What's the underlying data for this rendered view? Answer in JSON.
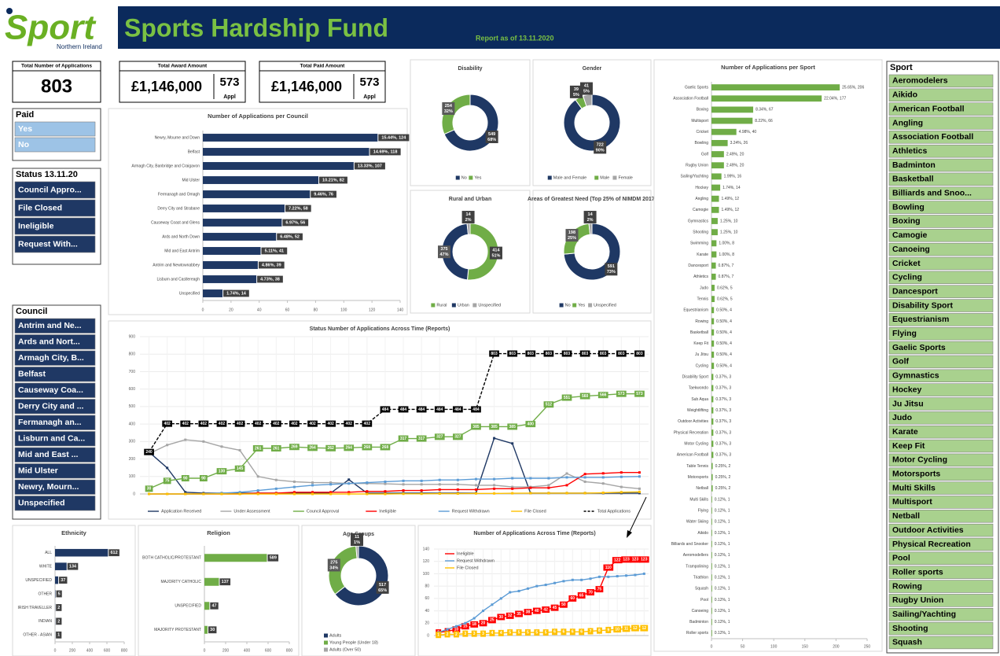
{
  "header": {
    "logo": "Sport",
    "logo_sub": "Northern Ireland",
    "title": "Sports Hardship Fund",
    "report_date": "Report as of 13.11.2020"
  },
  "kpis": [
    {
      "label": "Total Number of Applications",
      "value": 803
    },
    {
      "label": "Total Award Amount",
      "value": "£1,146,000",
      "count": 573,
      "count_label": "Appl"
    },
    {
      "label": "Total Paid Amount",
      "value": "£1,146,000",
      "count": 573,
      "count_label": "Appl"
    }
  ],
  "slicers": [
    {
      "title": "Paid",
      "items": [
        "Yes",
        "No"
      ]
    },
    {
      "title": "Status 13.11.20",
      "items": [
        "Council Appro...",
        "File Closed",
        "Ineligible",
        "Request With..."
      ]
    },
    {
      "title": "Council",
      "items": [
        "Antrim and Ne...",
        "Ards and Nort...",
        "Armagh City, B...",
        "Belfast",
        "Causeway Coa...",
        "Derry City and ...",
        "Fermanagh an...",
        "Lisburn and Ca...",
        "Mid and East ...",
        "Mid Ulster",
        "Newry, Mourn...",
        "Unspecified"
      ]
    },
    {
      "title": "Sport",
      "items": [
        "Aeromodelers",
        "Aikido",
        "American Football",
        "Angling",
        "Association Football",
        "Athletics",
        "Badminton",
        "Basketball",
        "Billiards and Snoo...",
        "Bowling",
        "Boxing",
        "Camogie",
        "Canoeing",
        "Cricket",
        "Cycling",
        "Dancesport",
        "Disability Sport",
        "Equestrianism",
        "Flying",
        "Gaelic Sports",
        "Golf",
        "Gymnastics",
        "Hockey",
        "Ju Jitsu",
        "Judo",
        "Karate",
        "Keep Fit",
        "Motor Cycling",
        "Motorsports",
        "Multi Skills",
        "Multisport",
        "Netball",
        "Outdoor Activities",
        "Physical Recreation",
        "Pool",
        "Roller sports",
        "Rowing",
        "Rugby Union",
        "Sailing/Yachting",
        "Shooting",
        "Squash"
      ]
    }
  ],
  "chart_data": [
    {
      "type": "hbar",
      "title": "Number of Applications per Council",
      "color": "#1f3864",
      "categories": [
        "Newry, Mourne and Down",
        "Belfast",
        "Armagh City, Banbridge and Craigavon",
        "Mid Ulster",
        "Fermanagh and Omagh",
        "Derry City and Strabane",
        "Causeway Coast and Glens",
        "Ards and North Down",
        "Mid and East Antrim",
        "Antrim and Newtownabbey",
        "Lisburn and Castlereagh",
        "Unspecified"
      ],
      "values": [
        124,
        118,
        107,
        82,
        76,
        58,
        56,
        52,
        41,
        39,
        38,
        14
      ],
      "value_labels": [
        "15.44%, 124",
        "14.69%, 118",
        "13.33%, 107",
        "10.21%, 82",
        "9.46%, 76",
        "7.22%, 58",
        "6.97%, 56",
        "6.48%, 52",
        "5.11%, 41",
        "4.86%, 39",
        "4.73%, 38",
        "1.74%, 14"
      ],
      "xlim": [
        0,
        140
      ],
      "xticks": [
        0,
        20,
        40,
        60,
        80,
        100,
        120,
        140
      ]
    },
    {
      "type": "donut",
      "title": "Disability",
      "categories": [
        "No",
        "Yes"
      ],
      "values": [
        549,
        254
      ],
      "value_labels": [
        [
          "549",
          "68%"
        ],
        [
          "254",
          "32%"
        ]
      ],
      "colors": [
        "#1f3864",
        "#70ad47"
      ]
    },
    {
      "type": "donut",
      "title": "Gender",
      "categories": [
        "Male and Female",
        "Male",
        "Female"
      ],
      "values": [
        722,
        39,
        41
      ],
      "value_labels": [
        [
          "722",
          "90%"
        ],
        [
          "39",
          "5%"
        ],
        [
          "41",
          "5%"
        ]
      ],
      "colors": [
        "#1f3864",
        "#70ad47",
        "#a5a5a5"
      ]
    },
    {
      "type": "donut",
      "title": "Rural and Urban",
      "categories": [
        "Rural",
        "Urban",
        "Unspecified"
      ],
      "values": [
        414,
        375,
        14
      ],
      "value_labels": [
        [
          "414",
          "51%"
        ],
        [
          "375",
          "47%"
        ],
        [
          "14",
          "2%"
        ]
      ],
      "colors": [
        "#70ad47",
        "#1f3864",
        "#a5a5a5"
      ]
    },
    {
      "type": "donut",
      "title": "Areas of Greatest Need (Top 25% of NIMDM 2017)",
      "categories": [
        "No",
        "Yes",
        "Unspecified"
      ],
      "values": [
        591,
        198,
        14
      ],
      "value_labels": [
        [
          "591",
          "73%"
        ],
        [
          "198",
          "25%"
        ],
        [
          "14",
          "2%"
        ]
      ],
      "colors": [
        "#1f3864",
        "#70ad47",
        "#a5a5a5"
      ]
    },
    {
      "type": "line",
      "title": "Status Number of Applications Across Time (Reports)",
      "legend": "bottom",
      "categories": [
        null,
        null,
        null,
        null,
        null,
        null,
        null,
        null,
        null,
        null,
        null,
        null,
        null,
        null,
        null,
        null,
        null,
        null,
        null,
        null,
        null,
        null,
        null,
        null,
        null,
        null,
        null,
        null
      ],
      "ylim": [
        0,
        900
      ],
      "yticks": [
        0,
        100,
        200,
        300,
        400,
        500,
        600,
        700,
        800,
        900
      ],
      "series": [
        {
          "name": "Application Received",
          "color": "#1f3864",
          "values": [
            240,
            149,
            10,
            5,
            5,
            5,
            5,
            5,
            5,
            5,
            5,
            82,
            5,
            5,
            5,
            5,
            5,
            5,
            5,
            319,
            289,
            5,
            5,
            5,
            5,
            5,
            5,
            5
          ]
        },
        {
          "name": "Under Assessment",
          "color": "#a5a5a5",
          "values": [
            230,
            280,
            310,
            300,
            271,
            250,
            100,
            80,
            70,
            65,
            65,
            60,
            60,
            58,
            55,
            55,
            55,
            55,
            50,
            50,
            40,
            40,
            50,
            117,
            70,
            60,
            40,
            30
          ]
        },
        {
          "name": "Council Approval",
          "color": "#70ad47",
          "labels": true,
          "values": [
            30,
            75,
            90,
            90,
            130,
            145,
            261,
            261,
            269,
            264,
            262,
            264,
            268,
            268,
            317,
            317,
            327,
            327,
            385,
            385,
            385,
            400,
            512,
            551,
            560,
            566,
            573,
            573
          ]
        },
        {
          "name": "Ineligible",
          "color": "#ff0000",
          "values": [
            0,
            0,
            0,
            0,
            0,
            0,
            5,
            5,
            10,
            10,
            10,
            10,
            15,
            15,
            20,
            20,
            25,
            25,
            25,
            30,
            30,
            35,
            35,
            50,
            114,
            118,
            123,
            123
          ]
        },
        {
          "name": "Request Withdrawn",
          "color": "#5b9bd5",
          "values": [
            0,
            0,
            0,
            0,
            5,
            10,
            20,
            30,
            40,
            50,
            55,
            60,
            65,
            70,
            75,
            75,
            80,
            80,
            85,
            85,
            90,
            90,
            90,
            95,
            95,
            95,
            98,
            100
          ]
        },
        {
          "name": "File Closed",
          "color": "#ffc000",
          "values": [
            0,
            0,
            0,
            0,
            0,
            0,
            0,
            0,
            0,
            0,
            0,
            0,
            0,
            0,
            1,
            1,
            2,
            2,
            3,
            3,
            4,
            5,
            5,
            5,
            5,
            7,
            10,
            12
          ]
        },
        {
          "name": "Total Applications",
          "color": "#000000",
          "dash": true,
          "labels": true,
          "values": [
            240,
            402,
            402,
            402,
            402,
            402,
            402,
            402,
            402,
            402,
            402,
            402,
            402,
            484,
            484,
            484,
            484,
            484,
            484,
            803,
            803,
            803,
            803,
            803,
            803,
            803,
            803,
            803
          ]
        }
      ]
    },
    {
      "type": "hbar",
      "title": "Number of Applications per Sport",
      "color": "#70ad47",
      "plain_labels": true,
      "categories": [
        "Gaelic Sports",
        "Association Football",
        "Boxing",
        "Multisport",
        "Cricket",
        "Bowling",
        "Golf",
        "Rugby Union",
        "Sailing/Yachting",
        "Hockey",
        "Angling",
        "Camogie",
        "Gymnastics",
        "Shooting",
        "Swimming",
        "Karate",
        "Dancesport",
        "Athletics",
        "Judo",
        "Tennis",
        "Equestrianism",
        "Rowing",
        "Basketball",
        "Keep Fit",
        "Ju Jitsu",
        "Cycling",
        "Disability Sport",
        "Taekwondo",
        "Sub Aqua",
        "Weightlifting",
        "Outdoor Activities",
        "Physical Recreation",
        "Motor Cycling",
        "American Football",
        "Table Tennis",
        "Motorsports",
        "Netball",
        "Multi Skills",
        "Flying",
        "Water Skiing",
        "Aikido",
        "Billiards and Snooker",
        "Aeromodellers",
        "Trampolining",
        "Triathlon",
        "Squash",
        "Pool",
        "Canoeing",
        "Badminton",
        "Roller sports"
      ],
      "values": [
        206,
        177,
        67,
        66,
        40,
        26,
        20,
        20,
        16,
        14,
        12,
        12,
        10,
        10,
        8,
        8,
        7,
        7,
        5,
        5,
        4,
        4,
        4,
        4,
        4,
        4,
        3,
        3,
        3,
        3,
        3,
        3,
        3,
        3,
        2,
        2,
        2,
        1,
        1,
        1,
        1,
        1,
        1,
        1,
        1,
        1,
        1,
        1,
        1,
        1
      ],
      "value_labels": [
        "25.65%, 206",
        "22.04%, 177",
        "8.34%, 67",
        "8.22%, 66",
        "4.98%, 40",
        "3.24%, 26",
        "2.49%, 20",
        "2.49%, 20",
        "1.99%, 16",
        "1.74%, 14",
        "1.49%, 12",
        "1.49%, 12",
        "1.25%, 10",
        "1.25%, 10",
        "1.00%, 8",
        "1.00%, 8",
        "0.87%, 7",
        "0.87%, 7",
        "0.62%, 5",
        "0.62%, 5",
        "0.50%, 4",
        "0.50%, 4",
        "0.50%, 4",
        "0.50%, 4",
        "0.50%, 4",
        "0.50%, 4",
        "0.37%, 3",
        "0.37%, 3",
        "0.37%, 3",
        "0.37%, 3",
        "0.37%, 3",
        "0.37%, 3",
        "0.37%, 3",
        "0.37%, 3",
        "0.25%, 2",
        "0.25%, 2",
        "0.25%, 2",
        "0.12%, 1",
        "0.12%, 1",
        "0.12%, 1",
        "0.12%, 1",
        "0.12%, 1",
        "0.12%, 1",
        "0.12%, 1",
        "0.12%, 1",
        "0.12%, 1",
        "0.12%, 1",
        "0.12%, 1",
        "0.12%, 1",
        "0.12%, 1"
      ],
      "xlim": [
        0,
        250
      ],
      "xticks": [
        0,
        50,
        100,
        150,
        200,
        250
      ]
    },
    {
      "type": "hbar",
      "title": "Ethnicity",
      "color": "#1f3864",
      "categories": [
        "ALL",
        "WHITE",
        "UNSPECIFIED",
        "OTHER",
        "IRISH TRAVELLER",
        "INDIAN",
        "OTHER - ASIAN"
      ],
      "values": [
        612,
        134,
        37,
        5,
        2,
        2,
        1
      ],
      "xlim": [
        0,
        800
      ],
      "xticks": [
        0,
        200,
        400,
        600,
        800
      ]
    },
    {
      "type": "hbar",
      "title": "Religion",
      "color": "#70ad47",
      "categories": [
        "BOTH CATHOLIC/PROTESTANT",
        "MAJORITY CATHOLIC",
        "UNSPECIFIED",
        "MAJORITY PROTESTANT"
      ],
      "values": [
        589,
        137,
        47,
        30
      ],
      "xlim": [
        0,
        800
      ],
      "xticks": [
        0,
        200,
        400,
        600,
        800
      ]
    },
    {
      "type": "donut",
      "title": "Age Groups",
      "categories": [
        "Adults",
        "Young People (Under 18)",
        "Adults (Over 50)"
      ],
      "values": [
        517,
        275,
        11
      ],
      "value_labels": [
        [
          "517",
          "65%"
        ],
        [
          "275",
          "34%"
        ],
        [
          "11",
          "1%"
        ]
      ],
      "colors": [
        "#1f3864",
        "#70ad47",
        "#a5a5a5"
      ],
      "legend": "left"
    },
    {
      "type": "line",
      "title": "Number of Applications Across Time (Reports)",
      "legend": "top-left",
      "categories": [
        null,
        null,
        null,
        null,
        null,
        null,
        null,
        null,
        null,
        null,
        null,
        null,
        null,
        null,
        null,
        null,
        null,
        null,
        null,
        null,
        null,
        null,
        null,
        null
      ],
      "ylim": [
        0,
        140
      ],
      "yticks": [
        0,
        20,
        40,
        60,
        80,
        100,
        120,
        140
      ],
      "series": [
        {
          "name": "Ineligible",
          "color": "#ff0000",
          "labels": true,
          "values": [
            5,
            7,
            10,
            15,
            18,
            20,
            25,
            30,
            32,
            35,
            38,
            40,
            42,
            45,
            50,
            60,
            65,
            70,
            75,
            110,
            122,
            123,
            123,
            123
          ]
        },
        {
          "name": "Request Withdrawn",
          "color": "#5b9bd5",
          "values": [
            5,
            10,
            15,
            20,
            28,
            40,
            50,
            60,
            70,
            72,
            76,
            80,
            82,
            85,
            88,
            90,
            90,
            92,
            95,
            95,
            96,
            97,
            98,
            100
          ]
        },
        {
          "name": "File Closed",
          "color": "#ffc000",
          "labels": true,
          "values": [
            1,
            2,
            2,
            3,
            3,
            3,
            4,
            4,
            5,
            5,
            5,
            5,
            5,
            6,
            6,
            6,
            6,
            7,
            8,
            9,
            10,
            11,
            12,
            12
          ]
        }
      ]
    }
  ]
}
